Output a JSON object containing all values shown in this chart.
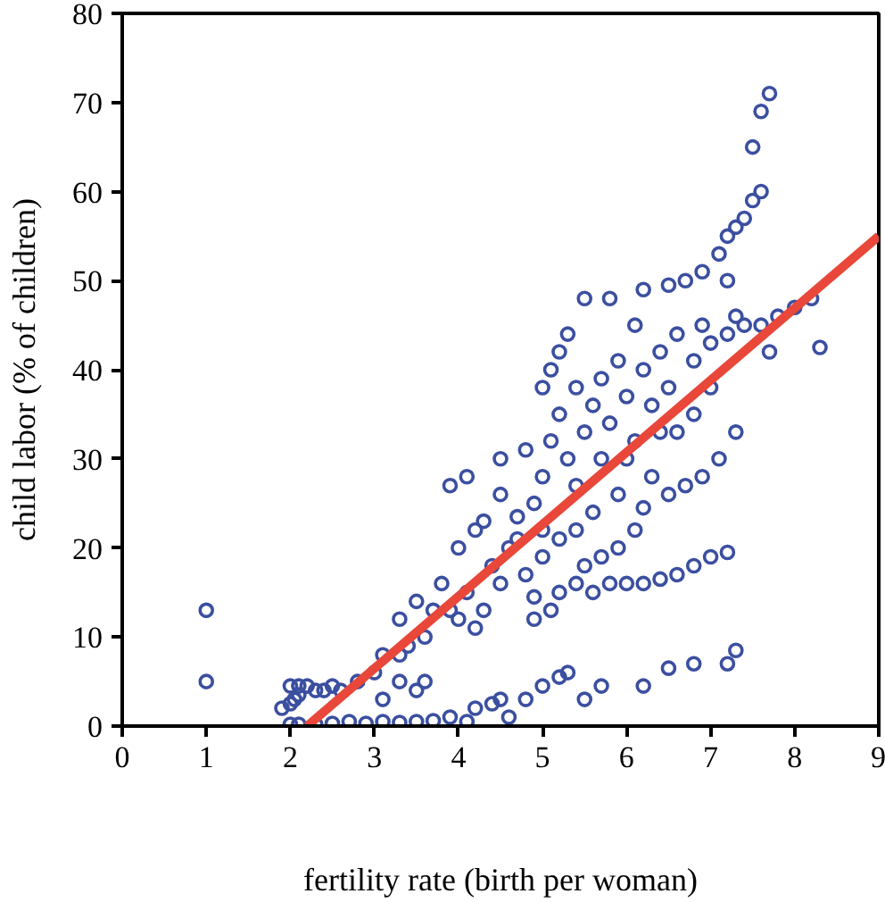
{
  "chart_data": {
    "type": "scatter",
    "xlabel": "fertility rate (birth per woman)",
    "ylabel": "child labor (% of children)",
    "xlim": [
      0,
      9
    ],
    "ylim": [
      0,
      80
    ],
    "xticks": [
      0,
      1,
      2,
      3,
      4,
      5,
      6,
      7,
      8,
      9
    ],
    "yticks": [
      0,
      10,
      20,
      30,
      40,
      50,
      60,
      70,
      80
    ],
    "grid": false,
    "series": [
      {
        "marker": "circle",
        "color": "#3b4fa0",
        "x": [
          1,
          1,
          1.9,
          2,
          2.05,
          2.1,
          2,
          2.1,
          2.2,
          2.3,
          2.4,
          2.5,
          2.6,
          2.8,
          3.1,
          3.3,
          3.5,
          3.6,
          2,
          2.1,
          2.3,
          2.5,
          2.7,
          2.9,
          3.1,
          3.3,
          3.5,
          3.7,
          3.9,
          4.1,
          4.2,
          4.4,
          4.6,
          4.8,
          5,
          5.2,
          5.5,
          5.7,
          6.2,
          6.5,
          6.8,
          7.2,
          7.3,
          4.5,
          5.3,
          3,
          3.1,
          3.3,
          3.4,
          3.6,
          3.7,
          3.9,
          4,
          4.2,
          4.1,
          4.3,
          4.5,
          4.6,
          4.7,
          4.8,
          5,
          5.2,
          5.4,
          5.6,
          5.8,
          6,
          6.2,
          6.4,
          6.6,
          6.8,
          7,
          7.2,
          5.5,
          5.7,
          5.9,
          6.1,
          5.1,
          4.9,
          3.8,
          4,
          4.2,
          4.3,
          4.5,
          3.9,
          4.1,
          4.5,
          4.8,
          4.9,
          5,
          5.1,
          5.2,
          5.3,
          5.4,
          5.5,
          5.6,
          5.7,
          5.8,
          6,
          6.1,
          6.2,
          6.3,
          6.4,
          6.5,
          6.6,
          6.8,
          6.9,
          7,
          7.2,
          7.4,
          7.6,
          7.8,
          8,
          8.2,
          8.3,
          7.7,
          5,
          5.1,
          5.2,
          5.5,
          5.8,
          6.2,
          6.5,
          6.7,
          6.9,
          5.3,
          7.1,
          7.2,
          7.3,
          7.4,
          7.5,
          7.6,
          7.5,
          7.6,
          7.7,
          7.2,
          7.3,
          6,
          6.3,
          6.5,
          6.7,
          6.9,
          7.1,
          7.3,
          6.6,
          6.8,
          7,
          5.6,
          5.9,
          6.2,
          5.4,
          5.2,
          4.7,
          4.4,
          3.5,
          3.3,
          4.9,
          5,
          5.7,
          5.9,
          6.4,
          6.1,
          5.4
        ],
        "values": [
          13,
          5,
          2,
          2.5,
          3,
          3.5,
          4.5,
          4.5,
          4.5,
          4,
          4,
          4.5,
          4,
          5,
          3,
          5,
          4,
          5,
          0.2,
          0.2,
          0.2,
          0.3,
          0.5,
          0.3,
          0.5,
          0.4,
          0.5,
          0.6,
          1,
          0.5,
          2,
          2.5,
          1,
          3,
          4.5,
          5.5,
          3,
          4.5,
          4.5,
          6.5,
          7,
          7,
          8.5,
          3,
          6,
          6,
          8,
          8,
          9,
          10,
          13,
          13,
          12,
          11,
          15,
          13,
          16,
          20,
          21,
          17,
          19,
          15,
          16,
          15,
          16,
          16,
          16,
          16.5,
          17,
          18,
          19,
          19.5,
          18,
          19,
          20,
          22,
          13,
          14.5,
          16,
          20,
          22,
          23,
          26,
          27,
          28,
          30,
          31,
          25,
          28,
          32,
          35,
          30,
          27,
          33,
          36,
          39,
          34,
          37,
          32,
          40,
          36,
          42,
          38,
          44,
          41,
          45,
          43,
          44,
          45,
          45,
          46,
          47,
          48,
          42.5,
          42,
          38,
          40,
          42,
          48,
          48,
          49,
          49.5,
          50,
          51,
          44,
          53,
          55,
          56,
          57,
          59,
          60,
          65,
          69,
          71,
          50,
          46,
          30,
          28,
          26,
          27,
          28,
          30,
          33,
          33,
          35,
          38,
          24,
          26,
          24.5,
          22,
          21,
          23.5,
          18,
          14,
          12,
          12,
          22,
          30,
          41,
          33,
          45,
          38
        ]
      },
      {
        "type": "line",
        "color": "#e8473a",
        "x": [
          2.2,
          9
        ],
        "values": [
          0,
          55
        ]
      }
    ]
  }
}
